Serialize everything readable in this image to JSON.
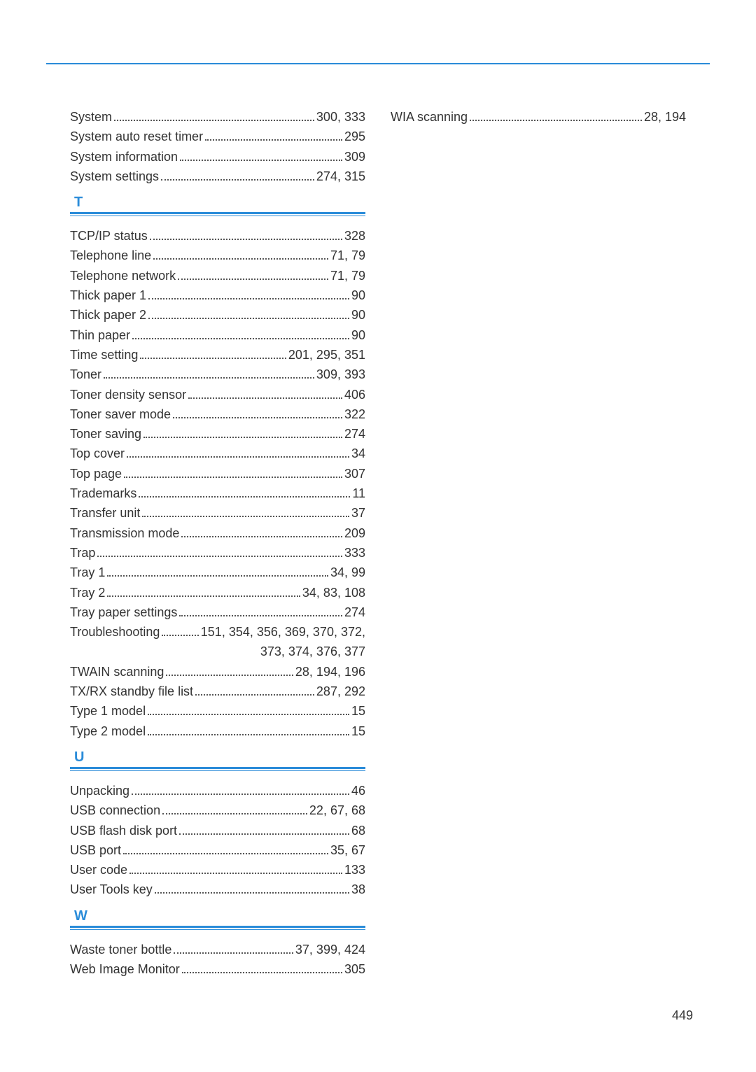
{
  "page_number": "449",
  "colors": {
    "accent": "#2b8cd9",
    "text": "#333333",
    "background": "#ffffff"
  },
  "left_column": {
    "pre_section": [
      {
        "term": "System",
        "pages": "300, 333"
      },
      {
        "term": "System auto reset timer",
        "pages": "295"
      },
      {
        "term": "System information",
        "pages": "309"
      },
      {
        "term": "System settings",
        "pages": "274, 315"
      }
    ],
    "sections": [
      {
        "letter": "T",
        "entries": [
          {
            "term": "TCP/IP status",
            "pages": "328"
          },
          {
            "term": "Telephone line",
            "pages": "71, 79"
          },
          {
            "term": "Telephone network",
            "pages": "71, 79"
          },
          {
            "term": "Thick paper 1",
            "pages": "90"
          },
          {
            "term": "Thick paper 2",
            "pages": "90"
          },
          {
            "term": "Thin paper",
            "pages": "90"
          },
          {
            "term": "Time setting",
            "pages": "201, 295, 351"
          },
          {
            "term": "Toner",
            "pages": "309, 393"
          },
          {
            "term": "Toner density sensor",
            "pages": "406"
          },
          {
            "term": "Toner saver mode",
            "pages": "322"
          },
          {
            "term": "Toner saving",
            "pages": "274"
          },
          {
            "term": "Top cover",
            "pages": "34"
          },
          {
            "term": "Top page",
            "pages": "307"
          },
          {
            "term": "Trademarks",
            "pages": "11"
          },
          {
            "term": "Transfer unit",
            "pages": "37"
          },
          {
            "term": "Transmission mode",
            "pages": "209"
          },
          {
            "term": "Trap",
            "pages": "333"
          },
          {
            "term": "Tray 1",
            "pages": "34, 99"
          },
          {
            "term": "Tray 2",
            "pages": "34, 83, 108"
          },
          {
            "term": "Tray paper settings",
            "pages": "274"
          },
          {
            "term": "Troubleshooting",
            "pages": "151, 354, 356, 369, 370, 372,",
            "wrap_pages": "373, 374, 376, 377"
          },
          {
            "term": "TWAIN scanning",
            "pages": "28, 194, 196"
          },
          {
            "term": "TX/RX standby file list",
            "pages": "287, 292"
          },
          {
            "term": "Type 1 model",
            "pages": "15"
          },
          {
            "term": "Type 2 model",
            "pages": "15"
          }
        ]
      },
      {
        "letter": "U",
        "entries": [
          {
            "term": "Unpacking",
            "pages": "46"
          },
          {
            "term": "USB connection",
            "pages": "22, 67, 68"
          },
          {
            "term": "USB flash disk port",
            "pages": "68"
          },
          {
            "term": "USB port",
            "pages": "35, 67"
          },
          {
            "term": "User code",
            "pages": "133"
          },
          {
            "term": "User Tools key",
            "pages": "38"
          }
        ]
      },
      {
        "letter": "W",
        "entries": [
          {
            "term": "Waste toner bottle",
            "pages": "37, 399, 424"
          },
          {
            "term": "Web Image Monitor",
            "pages": "305"
          }
        ]
      }
    ]
  },
  "right_column": {
    "pre_section": [
      {
        "term": "WIA scanning",
        "pages": "28, 194"
      }
    ],
    "sections": []
  }
}
